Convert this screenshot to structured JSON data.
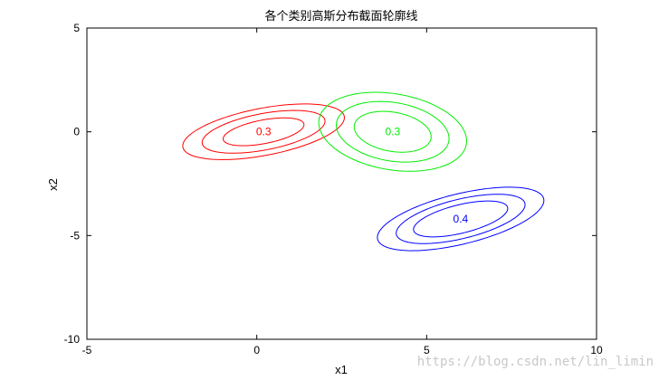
{
  "chart_data": {
    "type": "contour",
    "title": "各个类别高斯分布截面轮廓线",
    "xlabel": "x1",
    "ylabel": "x2",
    "xlim": [
      -5,
      10
    ],
    "ylim": [
      -10,
      5
    ],
    "xticks": [
      -5,
      0,
      5,
      10
    ],
    "yticks": [
      -10,
      -5,
      0,
      5
    ],
    "grid": false,
    "series": [
      {
        "color": "#ff0000",
        "center": [
          0.2,
          0.0
        ],
        "peak_label": "0.3",
        "levels": [
          {
            "semi_x": 1.25,
            "semi_y": 0.55,
            "angle_deg": 20
          },
          {
            "semi_x": 1.9,
            "semi_y": 0.85,
            "angle_deg": 20
          },
          {
            "semi_x": 2.5,
            "semi_y": 1.1,
            "angle_deg": 20
          }
        ]
      },
      {
        "color": "#00ee00",
        "center": [
          4.0,
          0.0
        ],
        "peak_label": "0.3",
        "levels": [
          {
            "semi_x": 1.2,
            "semi_y": 0.9,
            "angle_deg": -30
          },
          {
            "semi_x": 1.75,
            "semi_y": 1.35,
            "angle_deg": -30
          },
          {
            "semi_x": 2.3,
            "semi_y": 1.75,
            "angle_deg": -30
          }
        ]
      },
      {
        "color": "#0000ff",
        "center": [
          6.0,
          -4.2
        ],
        "peak_label": "0.4",
        "levels": [
          {
            "semi_x": 1.5,
            "semi_y": 0.65,
            "angle_deg": 25
          },
          {
            "semi_x": 2.05,
            "semi_y": 0.9,
            "angle_deg": 25
          },
          {
            "semi_x": 2.65,
            "semi_y": 1.15,
            "angle_deg": 25
          }
        ]
      }
    ]
  },
  "watermark": "https://blog.csdn.net/lin_limin"
}
